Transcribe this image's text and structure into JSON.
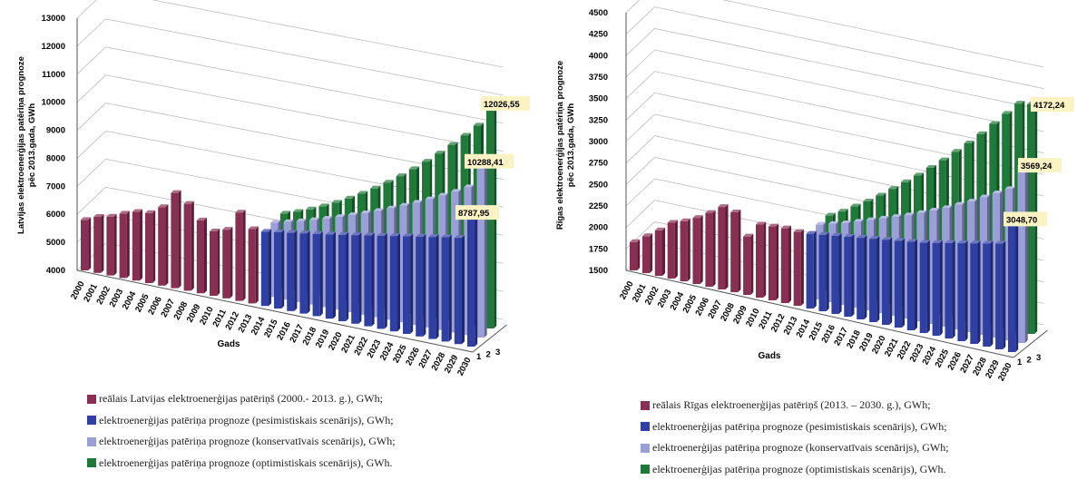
{
  "colors": {
    "real": "#8a2f54",
    "pessimistic": "#2f3fa4",
    "conservative": "#9a9fd8",
    "optimistic": "#1f7a3a",
    "callout_bg": "#fbf3c4"
  },
  "chart_data": [
    {
      "type": "bar",
      "ylabel": "Latvijas elektroenerģijas patēriņa prognoze pēc 2013.gada, GWh",
      "xlabel": "Gads",
      "ylim": [
        4000,
        13000
      ],
      "yticks": [
        4000,
        5000,
        6000,
        7000,
        8000,
        9000,
        10000,
        11000,
        12000,
        13000
      ],
      "depth_ticks": [
        "1",
        "2",
        "3"
      ],
      "categories": [
        "2000",
        "2001",
        "2002",
        "2003",
        "2004",
        "2005",
        "2006",
        "2007",
        "2008",
        "2009",
        "2010",
        "2011",
        "2012",
        "2013",
        "2014",
        "2015",
        "2016",
        "2017",
        "2018",
        "2019",
        "2020",
        "2021",
        "2022",
        "2023",
        "2024",
        "2025",
        "2026",
        "2027",
        "2028",
        "2029",
        "2030"
      ],
      "series": [
        {
          "name": "reālais Latvijas elektroenerģijas patēriņš (2000.- 2013. g.), GWh;",
          "color_key": "real",
          "values": [
            5800,
            6000,
            6100,
            6300,
            6450,
            6500,
            6800,
            7400,
            7100,
            6600,
            6300,
            6450,
            7150,
            6650,
            null,
            null,
            null,
            null,
            null,
            null,
            null,
            null,
            null,
            null,
            null,
            null,
            null,
            null,
            null,
            null,
            null
          ]
        },
        {
          "name": "elektroenerģijas patēriņa prognoze (pesimistiskais scenārijs), GWh;",
          "color_key": "pessimistic",
          "values": [
            null,
            null,
            null,
            null,
            null,
            null,
            null,
            null,
            null,
            null,
            null,
            null,
            null,
            null,
            6650,
            6720,
            6790,
            6860,
            6930,
            7000,
            7080,
            7160,
            7240,
            7320,
            7400,
            7480,
            7560,
            7640,
            7720,
            7790,
            8787.95
          ]
        },
        {
          "name": "elektroenerģijas patēriņa prognoze (konservatīvais scenārijs), GWh;",
          "color_key": "conservative",
          "values": [
            null,
            null,
            null,
            null,
            null,
            null,
            null,
            null,
            null,
            null,
            null,
            null,
            null,
            null,
            6650,
            6760,
            6880,
            7010,
            7150,
            7300,
            7460,
            7620,
            7790,
            7970,
            8160,
            8360,
            8570,
            8790,
            9020,
            9270,
            10288.41
          ]
        },
        {
          "name": "elektroenerģijas patēriņa prognoze (optimistiskais scenārijs), GWh.",
          "color_key": "optimistic",
          "values": [
            null,
            null,
            null,
            null,
            null,
            null,
            null,
            null,
            null,
            null,
            null,
            null,
            null,
            null,
            6650,
            6800,
            6980,
            7180,
            7400,
            7640,
            7900,
            8180,
            8480,
            8800,
            9140,
            9500,
            9880,
            10280,
            10700,
            11150,
            12026.55
          ]
        }
      ],
      "callouts": [
        "8787,95",
        "10288,41",
        "12026,55"
      ]
    },
    {
      "type": "bar",
      "ylabel": "Rīgas elektroenerģijas patēriņa prognoze pēc 2013.gada, GWh",
      "xlabel": "Gads",
      "ylim": [
        1500,
        4500
      ],
      "yticks": [
        1500,
        1750,
        2000,
        2250,
        2500,
        2750,
        3000,
        3250,
        3500,
        3750,
        4000,
        4250,
        4500
      ],
      "depth_ticks": [
        "1",
        "2",
        "3"
      ],
      "categories": [
        "2000",
        "2001",
        "2002",
        "2003",
        "2004",
        "2005",
        "2006",
        "2007",
        "2008",
        "2009",
        "2010",
        "2011",
        "2012",
        "2013",
        "2014",
        "2015",
        "2016",
        "2017",
        "2018",
        "2019",
        "2020",
        "2021",
        "2022",
        "2023",
        "2024",
        "2025",
        "2026",
        "2027",
        "2028",
        "2029",
        "2030"
      ],
      "series": [
        {
          "name": "reālais Rīgas elektroenerģijas patēriņš (2013. – 2030. g.), GWh;",
          "color_key": "real",
          "values": [
            1830,
            1930,
            2030,
            2150,
            2200,
            2270,
            2360,
            2460,
            2430,
            2180,
            2350,
            2360,
            2370,
            2360,
            null,
            null,
            null,
            null,
            null,
            null,
            null,
            null,
            null,
            null,
            null,
            null,
            null,
            null,
            null,
            null,
            null
          ]
        },
        {
          "name": "elektroenerģijas patēriņa prognoze (pesimistiskais scenārijs), GWh;",
          "color_key": "pessimistic",
          "values": [
            null,
            null,
            null,
            null,
            null,
            null,
            null,
            null,
            null,
            null,
            null,
            null,
            null,
            null,
            2370,
            2390,
            2410,
            2430,
            2450,
            2470,
            2490,
            2510,
            2530,
            2550,
            2580,
            2610,
            2640,
            2670,
            2700,
            2730,
            3048.7
          ]
        },
        {
          "name": "elektroenerģijas patēriņa prognoze (konservatīvais scenārijs), GWh;",
          "color_key": "conservative",
          "values": [
            null,
            null,
            null,
            null,
            null,
            null,
            null,
            null,
            null,
            null,
            null,
            null,
            null,
            null,
            2370,
            2410,
            2450,
            2500,
            2550,
            2600,
            2650,
            2700,
            2760,
            2820,
            2880,
            2950,
            3020,
            3100,
            3180,
            3260,
            3569.24
          ]
        },
        {
          "name": "elektroenerģijas patēriņa prognoze (optimistiskais scenārijs), GWh.",
          "color_key": "optimistic",
          "values": [
            null,
            null,
            null,
            null,
            null,
            null,
            null,
            null,
            null,
            null,
            null,
            null,
            null,
            null,
            2370,
            2450,
            2540,
            2630,
            2730,
            2840,
            2950,
            3060,
            3180,
            3300,
            3430,
            3560,
            3700,
            3850,
            4000,
            4150,
            4172.24
          ]
        }
      ],
      "callouts": [
        "3048,70",
        "3569,24",
        "4172,24"
      ]
    }
  ]
}
